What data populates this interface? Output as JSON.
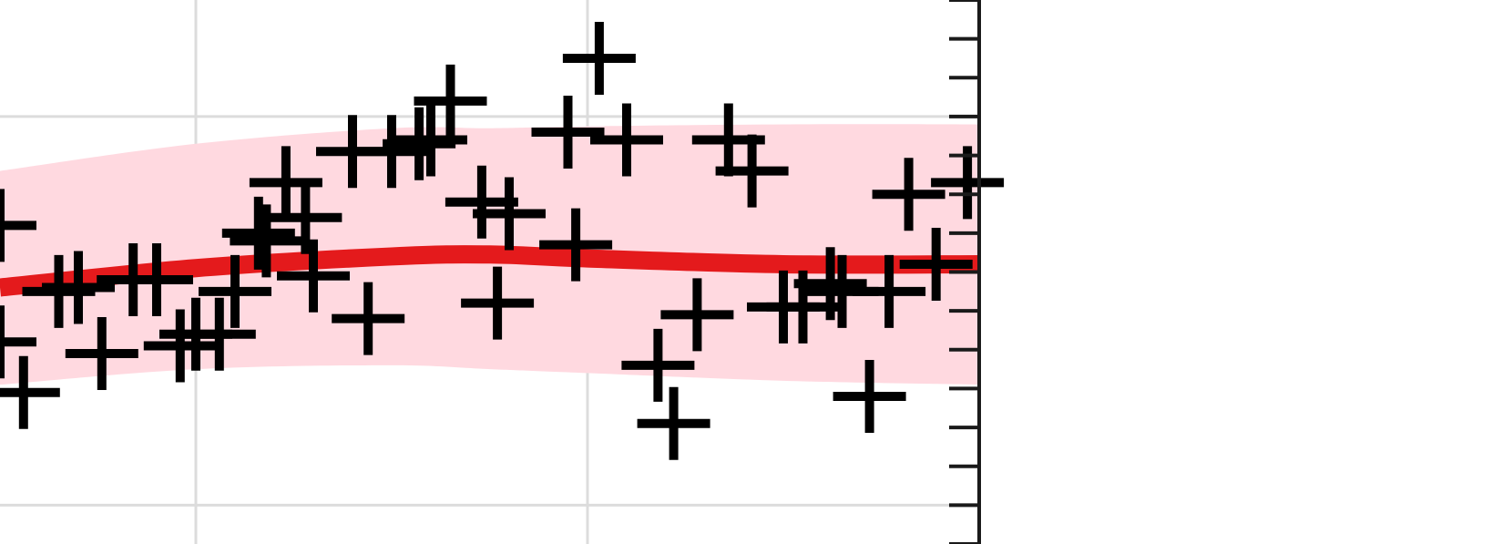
{
  "chart_data": {
    "type": "scatter",
    "x_range": [
      0,
      2.5
    ],
    "y_range": [
      0,
      14
    ],
    "x_grid": [
      0.5,
      1.5
    ],
    "y_grid": [
      1,
      11
    ],
    "y_ticks": [
      0,
      1,
      2,
      3,
      4,
      5,
      6,
      7,
      8,
      9,
      10,
      11,
      12,
      13,
      14
    ],
    "grid": true,
    "colors": {
      "fit_line": "#e41a1c",
      "band": "#ffd9e0",
      "markers": "#000000",
      "axis": "#1a1a1a",
      "grid": "#dcdcdc"
    },
    "fit": {
      "x": [
        0.0,
        0.5,
        1.0,
        1.25,
        1.5,
        2.0,
        2.5
      ],
      "y": [
        6.6,
        7.1,
        7.4,
        7.45,
        7.35,
        7.2,
        7.2
      ],
      "band_upper": [
        9.6,
        10.3,
        10.7,
        10.7,
        10.75,
        10.8,
        10.8
      ],
      "band_lower": [
        4.1,
        4.5,
        4.6,
        4.5,
        4.4,
        4.2,
        4.1
      ]
    },
    "points": [
      [
        0.0,
        8.2
      ],
      [
        0.0,
        5.2
      ],
      [
        0.06,
        3.9
      ],
      [
        0.15,
        6.5
      ],
      [
        0.2,
        6.6
      ],
      [
        0.26,
        4.9
      ],
      [
        0.34,
        6.8
      ],
      [
        0.4,
        6.8
      ],
      [
        0.46,
        5.1
      ],
      [
        0.5,
        5.4
      ],
      [
        0.56,
        5.4
      ],
      [
        0.6,
        6.5
      ],
      [
        0.66,
        8.0
      ],
      [
        0.68,
        7.8
      ],
      [
        0.73,
        9.3
      ],
      [
        0.78,
        8.4
      ],
      [
        0.8,
        6.9
      ],
      [
        0.9,
        10.1
      ],
      [
        0.94,
        5.8
      ],
      [
        1.0,
        10.1
      ],
      [
        1.07,
        10.3
      ],
      [
        1.1,
        10.4
      ],
      [
        1.15,
        11.4
      ],
      [
        1.23,
        8.8
      ],
      [
        1.27,
        6.2
      ],
      [
        1.3,
        8.5
      ],
      [
        1.45,
        10.6
      ],
      [
        1.47,
        7.7
      ],
      [
        1.53,
        12.5
      ],
      [
        1.6,
        10.4
      ],
      [
        1.68,
        4.6
      ],
      [
        1.72,
        3.1
      ],
      [
        1.78,
        5.9
      ],
      [
        1.86,
        10.4
      ],
      [
        1.92,
        9.6
      ],
      [
        2.0,
        6.1
      ],
      [
        2.05,
        6.1
      ],
      [
        2.12,
        6.7
      ],
      [
        2.15,
        6.5
      ],
      [
        2.22,
        3.8
      ],
      [
        2.27,
        6.5
      ],
      [
        2.32,
        9.0
      ],
      [
        2.39,
        7.2
      ],
      [
        2.47,
        9.3
      ]
    ]
  }
}
